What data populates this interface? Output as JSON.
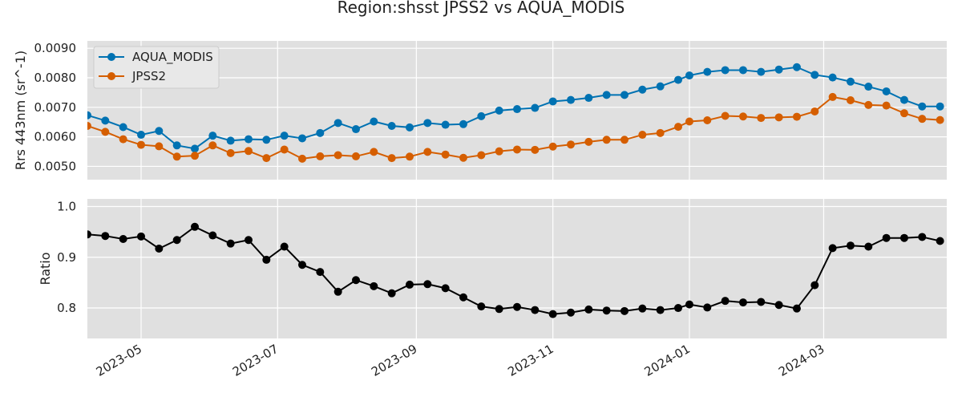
{
  "chart_data": {
    "type": "line",
    "title": "Region:shsst JPSS2 vs AQUA_MODIS",
    "grid": true,
    "legend_placement": "upper-left",
    "x_ticks": [
      "2023-05",
      "2023-07",
      "2023-09",
      "2023-11",
      "2024-01",
      "2024-03"
    ],
    "x_range": [
      "2023-04-07",
      "2024-04-25"
    ],
    "x": [
      "2023-04-07",
      "2023-04-15",
      "2023-04-23",
      "2023-05-01",
      "2023-05-09",
      "2023-05-17",
      "2023-05-25",
      "2023-06-02",
      "2023-06-10",
      "2023-06-18",
      "2023-06-26",
      "2023-07-04",
      "2023-07-12",
      "2023-07-20",
      "2023-07-28",
      "2023-08-05",
      "2023-08-13",
      "2023-08-21",
      "2023-08-29",
      "2023-09-06",
      "2023-09-14",
      "2023-09-22",
      "2023-09-30",
      "2023-10-08",
      "2023-10-16",
      "2023-10-24",
      "2023-11-01",
      "2023-11-09",
      "2023-11-17",
      "2023-11-25",
      "2023-12-03",
      "2023-12-11",
      "2023-12-19",
      "2023-12-27",
      "2024-01-01",
      "2024-01-09",
      "2024-01-17",
      "2024-01-25",
      "2024-02-02",
      "2024-02-10",
      "2024-02-18",
      "2024-02-26",
      "2024-03-05",
      "2024-03-13",
      "2024-03-21",
      "2024-03-29",
      "2024-04-06",
      "2024-04-14",
      "2024-04-22"
    ],
    "panels": [
      {
        "ylabel": "Rrs 443nm (sr^-1)",
        "y_ticks": [
          "0.0050",
          "0.0060",
          "0.0070",
          "0.0080",
          "0.0090"
        ],
        "ylim": [
          0.00455,
          0.00925
        ],
        "series": [
          {
            "name": "AQUA_MODIS",
            "color": "#0072b2",
            "values": [
              0.00673,
              0.00655,
              0.00633,
              0.00607,
              0.0062,
              0.00571,
              0.0056,
              0.00604,
              0.00587,
              0.00592,
              0.0059,
              0.00604,
              0.00595,
              0.00613,
              0.00647,
              0.00626,
              0.00652,
              0.00637,
              0.00632,
              0.00647,
              0.00641,
              0.00643,
              0.0067,
              0.00689,
              0.00694,
              0.00698,
              0.0072,
              0.00725,
              0.00732,
              0.00742,
              0.00742,
              0.0076,
              0.00771,
              0.00793,
              0.00808,
              0.0082,
              0.00826,
              0.00826,
              0.0082,
              0.00828,
              0.00836,
              0.0081,
              0.00801,
              0.00787,
              0.0077,
              0.00754,
              0.00725,
              0.00703,
              0.00703
            ]
          },
          {
            "name": "JPSS2",
            "color": "#d55e00",
            "values": [
              0.00637,
              0.00617,
              0.00592,
              0.00573,
              0.00568,
              0.00533,
              0.00536,
              0.00571,
              0.00545,
              0.00552,
              0.00528,
              0.00557,
              0.00526,
              0.00534,
              0.00538,
              0.00534,
              0.00549,
              0.00528,
              0.00533,
              0.00549,
              0.0054,
              0.00529,
              0.00538,
              0.00551,
              0.00557,
              0.00556,
              0.00567,
              0.00574,
              0.00583,
              0.0059,
              0.0059,
              0.00607,
              0.00613,
              0.00634,
              0.00652,
              0.00656,
              0.00671,
              0.00669,
              0.00664,
              0.00666,
              0.00668,
              0.00686,
              0.00735,
              0.00724,
              0.00708,
              0.00706,
              0.0068,
              0.00661,
              0.00657
            ]
          }
        ]
      },
      {
        "ylabel": "Ratio",
        "y_ticks": [
          "0.8",
          "0.9",
          "1.0"
        ],
        "ylim": [
          0.74,
          1.015
        ],
        "series": [
          {
            "name": "",
            "color": "#000000",
            "values": [
              0.945,
              0.942,
              0.936,
              0.941,
              0.917,
              0.934,
              0.96,
              0.943,
              0.927,
              0.934,
              0.895,
              0.921,
              0.885,
              0.871,
              0.832,
              0.855,
              0.843,
              0.829,
              0.846,
              0.847,
              0.839,
              0.821,
              0.803,
              0.798,
              0.802,
              0.796,
              0.788,
              0.791,
              0.797,
              0.795,
              0.794,
              0.799,
              0.796,
              0.8,
              0.807,
              0.801,
              0.814,
              0.811,
              0.812,
              0.806,
              0.799,
              0.845,
              0.918,
              0.923,
              0.921,
              0.938,
              0.938,
              0.94,
              0.932
            ]
          }
        ]
      }
    ]
  }
}
